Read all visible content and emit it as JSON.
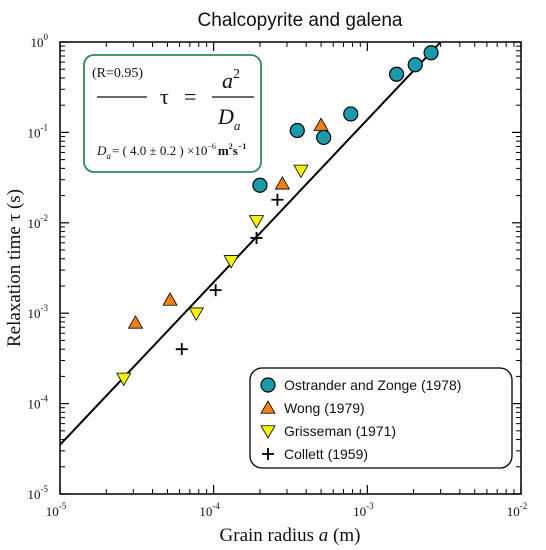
{
  "chart_data": {
    "type": "scatter",
    "title": "Chalcopyrite and galena",
    "xlabel_main": "Grain radius ",
    "xlabel_var": "a",
    "xlabel_unit": " (m)",
    "ylabel": "Relaxation time τ (s)",
    "x_scale": "log",
    "y_scale": "log",
    "xlim": [
      1e-05,
      0.01
    ],
    "ylim": [
      1e-05,
      1
    ],
    "x_ticks": [
      {
        "value": 1e-05,
        "base": "10",
        "exp": "-5"
      },
      {
        "value": 0.0001,
        "base": "10",
        "exp": "-4"
      },
      {
        "value": 0.001,
        "base": "10",
        "exp": "-3"
      },
      {
        "value": 0.01,
        "base": "10",
        "exp": "-2"
      }
    ],
    "y_ticks": [
      {
        "value": 1e-05,
        "base": "10",
        "exp": "-5"
      },
      {
        "value": 0.0001,
        "base": "10",
        "exp": "-4"
      },
      {
        "value": 0.001,
        "base": "10",
        "exp": "-3"
      },
      {
        "value": 0.01,
        "base": "10",
        "exp": "-2"
      },
      {
        "value": 0.1,
        "base": "10",
        "exp": "-1"
      },
      {
        "value": 1,
        "base": "10",
        "exp": "0"
      }
    ],
    "series": [
      {
        "name": "Ostrander and Zonge (1978)",
        "marker": "circle",
        "color": "#1a9aaa",
        "points": [
          [
            0.0002,
            0.026
          ],
          [
            0.00035,
            0.105
          ],
          [
            0.00052,
            0.088
          ],
          [
            0.00078,
            0.16
          ],
          [
            0.00155,
            0.44
          ],
          [
            0.00205,
            0.56
          ],
          [
            0.0026,
            0.76
          ]
        ]
      },
      {
        "name": "Wong (1979)",
        "marker": "triangle-up",
        "color": "#f07f18",
        "points": [
          [
            3.1e-05,
            0.00078
          ],
          [
            5.2e-05,
            0.0014
          ],
          [
            0.00028,
            0.027
          ],
          [
            0.0005,
            0.12
          ]
        ]
      },
      {
        "name": "Grisseman (1971)",
        "marker": "triangle-down",
        "color": "#f4f00e",
        "points": [
          [
            2.6e-05,
            0.00019
          ],
          [
            7.7e-05,
            0.001
          ],
          [
            0.00013,
            0.0038
          ],
          [
            0.00019,
            0.0105
          ],
          [
            0.00037,
            0.038
          ]
        ]
      },
      {
        "name": "Collett (1959)",
        "marker": "plus",
        "color": "#000000",
        "points": [
          [
            6.2e-05,
            0.0004
          ],
          [
            0.000103,
            0.0018
          ],
          [
            0.00019,
            0.0068
          ],
          [
            0.00026,
            0.018
          ]
        ]
      }
    ],
    "fit_line": {
      "x": [
        1e-05,
        0.003
      ],
      "y": [
        3.5e-05,
        1.0
      ]
    },
    "equation": {
      "r_text": "(R=0.95)",
      "tau": "τ",
      "equals": "=",
      "numerator": "a",
      "numerator_exp": "2",
      "denominator": "D",
      "denominator_sub": "a",
      "da_symbol": "D",
      "da_sub": "a",
      "da_value": "= ( 4.0 ± 0.2 ) ×10",
      "da_exp": "−6",
      "da_unit": "m",
      "da_unit_exp1": "2",
      "da_unit_s": "s",
      "da_unit_exp2": "−1"
    },
    "colors": {
      "axis": "#000000",
      "equation_box": "#2e8b57",
      "legend_border": "#000000"
    }
  }
}
